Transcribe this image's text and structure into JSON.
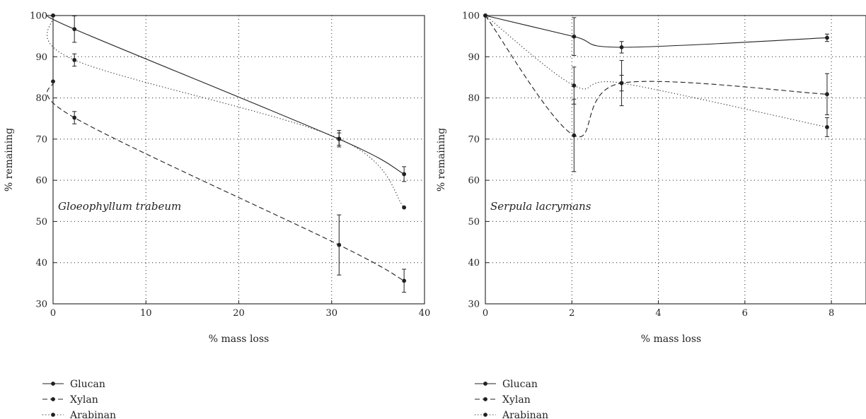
{
  "chart_data": [
    {
      "type": "line",
      "title": "",
      "annotation": "Gloeophyllum trabeum",
      "xlabel": "% mass loss",
      "ylabel": "% remaining",
      "xlim": [
        0,
        40
      ],
      "ylim": [
        30,
        100
      ],
      "xticks": [
        0,
        10,
        20,
        30,
        40
      ],
      "yticks": [
        30,
        40,
        50,
        60,
        70,
        80,
        90,
        100
      ],
      "grid": true,
      "legend_position": "bottom-left",
      "series": [
        {
          "name": "Glucan",
          "style": "solid",
          "x": [
            0,
            2.3,
            30.8,
            37.8
          ],
          "y": [
            100,
            96.7,
            70.0,
            61.5
          ],
          "err": [
            0,
            3.2,
            1.5,
            1.8
          ]
        },
        {
          "name": "Xylan",
          "style": "dashed",
          "x": [
            0,
            2.3,
            30.8,
            37.8
          ],
          "y": [
            84,
            75.2,
            44.3,
            35.6
          ],
          "err": [
            0,
            1.5,
            7.3,
            2.8
          ]
        },
        {
          "name": "Arabinan",
          "style": "dotted",
          "x": [
            0,
            2.3,
            30.8,
            37.8
          ],
          "y": [
            100,
            89.2,
            70.1,
            53.4
          ],
          "err": [
            0,
            1.5,
            2.0,
            0
          ]
        }
      ]
    },
    {
      "type": "line",
      "title": "",
      "annotation": "Serpula lacrymans",
      "xlabel": "% mass loss",
      "ylabel": "% remaining",
      "xlim": [
        0,
        8.8
      ],
      "ylim": [
        30,
        100
      ],
      "xticks": [
        0,
        2,
        4,
        6,
        8
      ],
      "yticks": [
        30,
        40,
        50,
        60,
        70,
        80,
        90,
        100
      ],
      "grid": true,
      "legend_position": "bottom-left",
      "series": [
        {
          "name": "Glucan",
          "style": "solid",
          "x": [
            0,
            2.05,
            3.15,
            7.9
          ],
          "y": [
            100,
            94.9,
            92.3,
            94.6
          ],
          "err": [
            0,
            4.6,
            1.4,
            0.9
          ]
        },
        {
          "name": "Xylan",
          "style": "dashed",
          "x": [
            0,
            2.05,
            3.15,
            7.9
          ],
          "y": [
            100,
            70.9,
            83.6,
            80.9
          ],
          "err": [
            0,
            8.8,
            5.5,
            5.0
          ]
        },
        {
          "name": "Arabinan",
          "style": "dotted",
          "x": [
            0,
            2.05,
            3.15,
            7.9
          ],
          "y": [
            100,
            83.0,
            83.6,
            72.9
          ],
          "err": [
            0,
            4.5,
            1.9,
            2.3
          ]
        }
      ]
    }
  ],
  "style": {
    "ink": "#231f20",
    "grid": "#231f20"
  }
}
